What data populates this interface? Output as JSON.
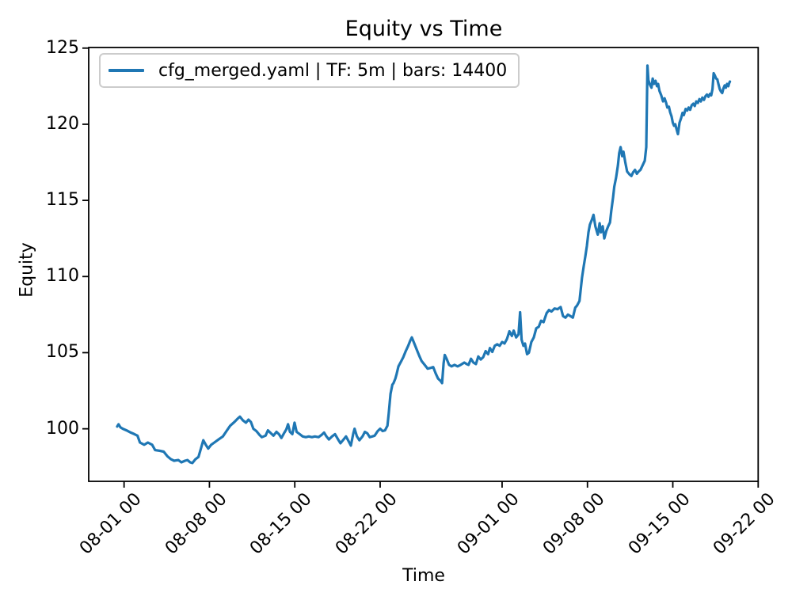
{
  "figure": {
    "background": "#ffffff",
    "text_color": "#000000"
  },
  "legend": {
    "label": "cfg_merged.yaml | TF: 5m | bars: 14400",
    "line_color": "#1f77b4",
    "position": "upper-left"
  },
  "chart_data": {
    "type": "line",
    "title": "Equity vs Time",
    "xlabel": "Time",
    "ylabel": "Equity",
    "grid": false,
    "legend_position": "upper-left",
    "x_axis": {
      "unit": "datetime (MM-DD HH), day 0 = 08-01 00:00",
      "tick_labels": [
        "08-01 00",
        "08-08 00",
        "08-15 00",
        "08-22 00",
        "09-01 00",
        "09-08 00",
        "09-15 00",
        "09-22 00"
      ],
      "tick_days": [
        0,
        7,
        14,
        21,
        31,
        38,
        45,
        52
      ],
      "range_days": [
        -2.9,
        52.0
      ]
    },
    "y_axis": {
      "tick_labels": [
        "100",
        "105",
        "110",
        "115",
        "120",
        "125"
      ],
      "tick_values": [
        100,
        105,
        110,
        115,
        120,
        125
      ],
      "range": [
        96.55,
        125.04
      ]
    },
    "series": [
      {
        "name": "cfg_merged.yaml | TF: 5m | bars: 14400",
        "color": "#1f77b4",
        "line_width": 3.2,
        "points_day_value": [
          [
            -0.57,
            100.15
          ],
          [
            -0.45,
            100.3
          ],
          [
            -0.3,
            100.1
          ],
          [
            -0.1,
            100.0
          ],
          [
            0.2,
            99.9
          ],
          [
            0.55,
            99.75
          ],
          [
            0.85,
            99.65
          ],
          [
            1.1,
            99.55
          ],
          [
            1.3,
            99.1
          ],
          [
            1.65,
            98.95
          ],
          [
            1.95,
            99.1
          ],
          [
            2.3,
            98.95
          ],
          [
            2.55,
            98.6
          ],
          [
            2.95,
            98.55
          ],
          [
            3.25,
            98.5
          ],
          [
            3.55,
            98.2
          ],
          [
            3.85,
            98.0
          ],
          [
            4.1,
            97.9
          ],
          [
            4.45,
            97.95
          ],
          [
            4.7,
            97.8
          ],
          [
            5.0,
            97.9
          ],
          [
            5.2,
            97.95
          ],
          [
            5.42,
            97.8
          ],
          [
            5.6,
            97.75
          ],
          [
            5.85,
            98.0
          ],
          [
            6.1,
            98.15
          ],
          [
            6.3,
            98.7
          ],
          [
            6.5,
            99.25
          ],
          [
            6.7,
            98.95
          ],
          [
            6.9,
            98.7
          ],
          [
            7.15,
            98.95
          ],
          [
            7.4,
            99.1
          ],
          [
            7.75,
            99.3
          ],
          [
            8.1,
            99.5
          ],
          [
            8.4,
            99.85
          ],
          [
            8.7,
            100.2
          ],
          [
            9.05,
            100.45
          ],
          [
            9.3,
            100.65
          ],
          [
            9.5,
            100.8
          ],
          [
            9.75,
            100.55
          ],
          [
            10.0,
            100.4
          ],
          [
            10.2,
            100.6
          ],
          [
            10.4,
            100.45
          ],
          [
            10.6,
            100.0
          ],
          [
            10.85,
            99.85
          ],
          [
            11.1,
            99.6
          ],
          [
            11.3,
            99.45
          ],
          [
            11.6,
            99.55
          ],
          [
            11.8,
            99.9
          ],
          [
            12.05,
            99.7
          ],
          [
            12.25,
            99.55
          ],
          [
            12.5,
            99.8
          ],
          [
            12.7,
            99.65
          ],
          [
            12.9,
            99.4
          ],
          [
            13.15,
            99.75
          ],
          [
            13.3,
            99.95
          ],
          [
            13.45,
            100.3
          ],
          [
            13.6,
            99.8
          ],
          [
            13.8,
            99.65
          ],
          [
            13.98,
            100.4
          ],
          [
            14.15,
            99.8
          ],
          [
            14.4,
            99.65
          ],
          [
            14.65,
            99.5
          ],
          [
            14.9,
            99.45
          ],
          [
            15.15,
            99.5
          ],
          [
            15.4,
            99.45
          ],
          [
            15.65,
            99.5
          ],
          [
            15.95,
            99.45
          ],
          [
            16.2,
            99.6
          ],
          [
            16.4,
            99.75
          ],
          [
            16.6,
            99.5
          ],
          [
            16.8,
            99.3
          ],
          [
            17.05,
            99.5
          ],
          [
            17.3,
            99.65
          ],
          [
            17.55,
            99.3
          ],
          [
            17.75,
            99.05
          ],
          [
            18.0,
            99.3
          ],
          [
            18.2,
            99.5
          ],
          [
            18.4,
            99.2
          ],
          [
            18.6,
            98.9
          ],
          [
            18.8,
            99.7
          ],
          [
            18.9,
            100.0
          ],
          [
            19.1,
            99.5
          ],
          [
            19.3,
            99.25
          ],
          [
            19.55,
            99.5
          ],
          [
            19.75,
            99.8
          ],
          [
            19.95,
            99.7
          ],
          [
            20.15,
            99.45
          ],
          [
            20.35,
            99.5
          ],
          [
            20.55,
            99.55
          ],
          [
            20.8,
            99.85
          ],
          [
            21.0,
            100.0
          ],
          [
            21.2,
            99.85
          ],
          [
            21.4,
            99.9
          ],
          [
            21.6,
            100.2
          ],
          [
            21.7,
            101.0
          ],
          [
            21.85,
            102.3
          ],
          [
            22.0,
            102.9
          ],
          [
            22.1,
            103.0
          ],
          [
            22.25,
            103.3
          ],
          [
            22.35,
            103.6
          ],
          [
            22.5,
            104.1
          ],
          [
            22.7,
            104.4
          ],
          [
            22.9,
            104.7
          ],
          [
            23.1,
            105.1
          ],
          [
            23.3,
            105.45
          ],
          [
            23.45,
            105.75
          ],
          [
            23.6,
            106.0
          ],
          [
            23.8,
            105.6
          ],
          [
            24.0,
            105.2
          ],
          [
            24.2,
            104.8
          ],
          [
            24.4,
            104.45
          ],
          [
            24.65,
            104.2
          ],
          [
            24.9,
            103.95
          ],
          [
            25.15,
            104.0
          ],
          [
            25.35,
            104.05
          ],
          [
            25.55,
            103.65
          ],
          [
            25.75,
            103.3
          ],
          [
            25.95,
            103.15
          ],
          [
            26.08,
            103.0
          ],
          [
            26.2,
            104.3
          ],
          [
            26.3,
            104.85
          ],
          [
            26.45,
            104.6
          ],
          [
            26.65,
            104.2
          ],
          [
            26.85,
            104.1
          ],
          [
            27.1,
            104.2
          ],
          [
            27.35,
            104.1
          ],
          [
            27.6,
            104.2
          ],
          [
            27.9,
            104.35
          ],
          [
            28.1,
            104.25
          ],
          [
            28.25,
            104.2
          ],
          [
            28.45,
            104.6
          ],
          [
            28.65,
            104.35
          ],
          [
            28.85,
            104.25
          ],
          [
            29.05,
            104.75
          ],
          [
            29.25,
            104.55
          ],
          [
            29.45,
            104.7
          ],
          [
            29.65,
            105.1
          ],
          [
            29.85,
            104.9
          ],
          [
            30.0,
            105.3
          ],
          [
            30.2,
            105.05
          ],
          [
            30.4,
            105.45
          ],
          [
            30.6,
            105.55
          ],
          [
            30.8,
            105.45
          ],
          [
            31.0,
            105.7
          ],
          [
            31.2,
            105.6
          ],
          [
            31.4,
            105.9
          ],
          [
            31.6,
            106.4
          ],
          [
            31.8,
            106.1
          ],
          [
            31.95,
            106.45
          ],
          [
            32.15,
            106.0
          ],
          [
            32.35,
            106.2
          ],
          [
            32.48,
            107.65
          ],
          [
            32.6,
            105.85
          ],
          [
            32.75,
            105.45
          ],
          [
            32.88,
            105.6
          ],
          [
            33.05,
            104.9
          ],
          [
            33.2,
            105.0
          ],
          [
            33.4,
            105.7
          ],
          [
            33.6,
            106.0
          ],
          [
            33.8,
            106.6
          ],
          [
            34.0,
            106.7
          ],
          [
            34.2,
            107.1
          ],
          [
            34.4,
            107.0
          ],
          [
            34.65,
            107.6
          ],
          [
            34.85,
            107.8
          ],
          [
            35.05,
            107.7
          ],
          [
            35.3,
            107.9
          ],
          [
            35.55,
            107.85
          ],
          [
            35.8,
            108.0
          ],
          [
            36.0,
            107.4
          ],
          [
            36.2,
            107.3
          ],
          [
            36.4,
            107.5
          ],
          [
            36.6,
            107.4
          ],
          [
            36.8,
            107.3
          ],
          [
            37.0,
            107.95
          ],
          [
            37.15,
            108.1
          ],
          [
            37.35,
            108.4
          ],
          [
            37.55,
            109.9
          ],
          [
            37.7,
            110.7
          ],
          [
            37.82,
            111.3
          ],
          [
            37.95,
            112.0
          ],
          [
            38.08,
            112.9
          ],
          [
            38.2,
            113.4
          ],
          [
            38.35,
            113.7
          ],
          [
            38.5,
            114.05
          ],
          [
            38.65,
            113.3
          ],
          [
            38.85,
            112.75
          ],
          [
            39.0,
            113.5
          ],
          [
            39.1,
            112.9
          ],
          [
            39.25,
            113.3
          ],
          [
            39.38,
            112.5
          ],
          [
            39.55,
            113.0
          ],
          [
            39.7,
            113.3
          ],
          [
            39.85,
            113.55
          ],
          [
            39.95,
            114.3
          ],
          [
            40.1,
            115.2
          ],
          [
            40.2,
            115.9
          ],
          [
            40.35,
            116.5
          ],
          [
            40.5,
            117.3
          ],
          [
            40.6,
            118.1
          ],
          [
            40.72,
            118.5
          ],
          [
            40.85,
            117.9
          ],
          [
            40.95,
            118.2
          ],
          [
            41.1,
            117.5
          ],
          [
            41.25,
            116.9
          ],
          [
            41.45,
            116.7
          ],
          [
            41.6,
            116.6
          ],
          [
            41.75,
            116.85
          ],
          [
            41.9,
            117.0
          ],
          [
            42.05,
            116.75
          ],
          [
            42.2,
            116.9
          ],
          [
            42.35,
            117.0
          ],
          [
            42.55,
            117.35
          ],
          [
            42.7,
            117.6
          ],
          [
            42.82,
            118.5
          ],
          [
            42.92,
            123.85
          ],
          [
            43.0,
            122.9
          ],
          [
            43.12,
            122.6
          ],
          [
            43.25,
            122.4
          ],
          [
            43.35,
            123.0
          ],
          [
            43.45,
            122.65
          ],
          [
            43.58,
            122.85
          ],
          [
            43.7,
            122.5
          ],
          [
            43.8,
            122.65
          ],
          [
            43.9,
            122.2
          ],
          [
            44.05,
            121.9
          ],
          [
            44.2,
            121.5
          ],
          [
            44.32,
            121.7
          ],
          [
            44.45,
            121.4
          ],
          [
            44.55,
            121.1
          ],
          [
            44.68,
            121.15
          ],
          [
            44.78,
            120.8
          ],
          [
            44.9,
            120.5
          ],
          [
            45.0,
            120.1
          ],
          [
            45.1,
            119.9
          ],
          [
            45.2,
            120.0
          ],
          [
            45.3,
            119.7
          ],
          [
            45.42,
            119.35
          ],
          [
            45.55,
            120.1
          ],
          [
            45.68,
            120.4
          ],
          [
            45.8,
            120.75
          ],
          [
            45.9,
            120.6
          ],
          [
            46.05,
            121.0
          ],
          [
            46.18,
            120.9
          ],
          [
            46.3,
            121.1
          ],
          [
            46.42,
            120.95
          ],
          [
            46.55,
            121.25
          ],
          [
            46.68,
            121.35
          ],
          [
            46.8,
            121.2
          ],
          [
            46.92,
            121.5
          ],
          [
            47.05,
            121.4
          ],
          [
            47.18,
            121.65
          ],
          [
            47.3,
            121.5
          ],
          [
            47.42,
            121.75
          ],
          [
            47.55,
            121.6
          ],
          [
            47.68,
            121.85
          ],
          [
            47.8,
            121.95
          ],
          [
            47.92,
            121.8
          ],
          [
            48.05,
            122.0
          ],
          [
            48.15,
            121.9
          ],
          [
            48.25,
            122.3
          ],
          [
            48.35,
            123.35
          ],
          [
            48.45,
            123.2
          ],
          [
            48.55,
            123.0
          ],
          [
            48.65,
            122.95
          ],
          [
            48.75,
            122.6
          ],
          [
            48.85,
            122.3
          ],
          [
            48.95,
            122.15
          ],
          [
            49.05,
            122.05
          ],
          [
            49.15,
            122.35
          ],
          [
            49.25,
            122.55
          ],
          [
            49.35,
            122.4
          ],
          [
            49.45,
            122.65
          ],
          [
            49.55,
            122.5
          ],
          [
            49.62,
            122.7
          ],
          [
            49.68,
            122.8
          ]
        ]
      }
    ]
  }
}
